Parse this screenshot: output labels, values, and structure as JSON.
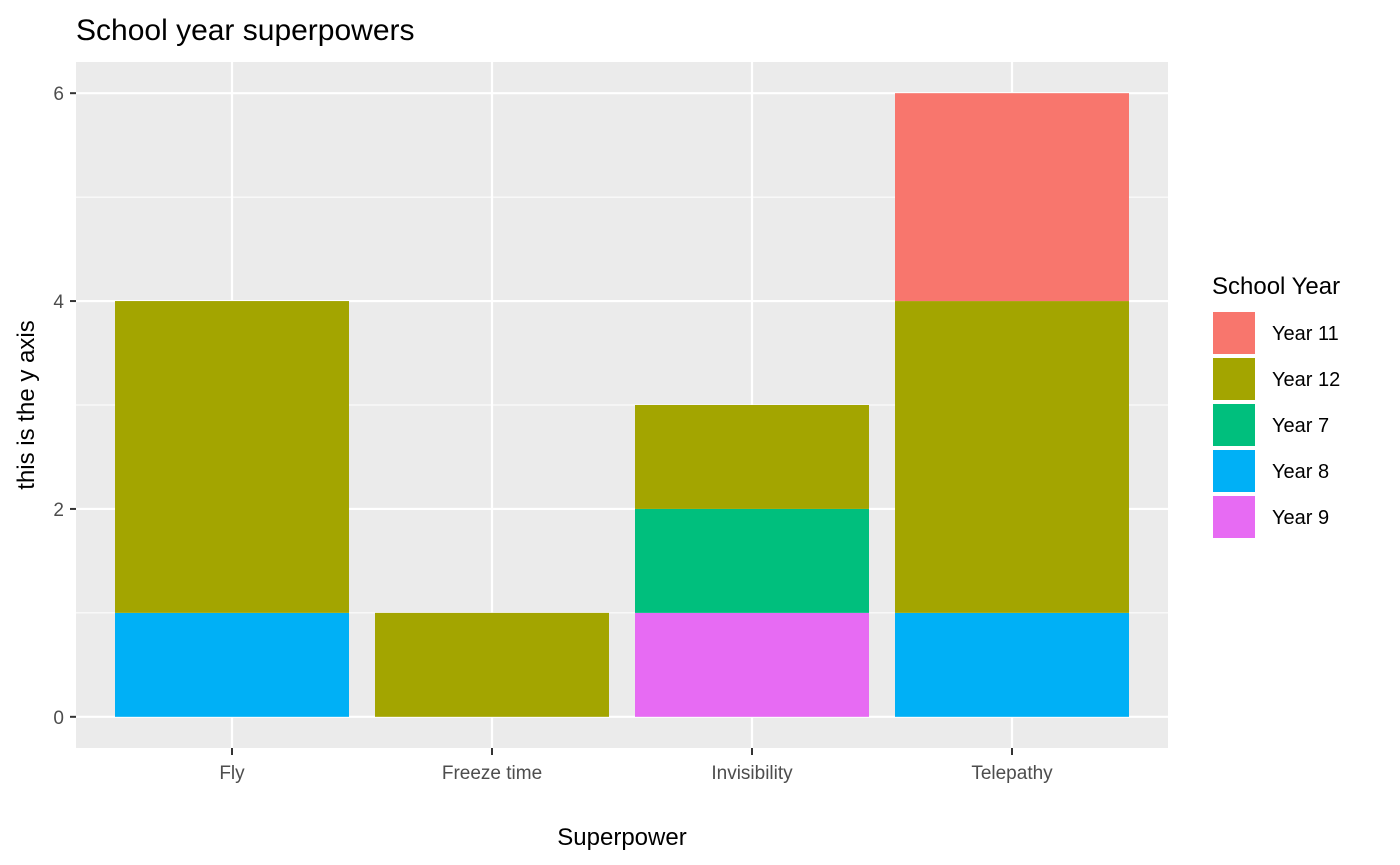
{
  "chart_data": {
    "type": "bar",
    "stacked": true,
    "title": "School year superpowers",
    "xlabel": "Superpower",
    "ylabel": "this is the y axis",
    "categories": [
      "Fly",
      "Freeze time",
      "Invisibility",
      "Telepathy"
    ],
    "ylim": [
      -0.3,
      6.3
    ],
    "yticks": [
      0,
      2,
      4,
      6
    ],
    "grid": true,
    "legend": {
      "title": "School Year",
      "position": "right"
    },
    "series": [
      {
        "name": "Year 11",
        "color": "#F8766D",
        "values": [
          0,
          0,
          0,
          2
        ]
      },
      {
        "name": "Year 12",
        "color": "#A3A500",
        "values": [
          3,
          1,
          1,
          3
        ]
      },
      {
        "name": "Year 7",
        "color": "#00BF7D",
        "values": [
          0,
          0,
          1,
          0
        ]
      },
      {
        "name": "Year 8",
        "color": "#00B0F6",
        "values": [
          1,
          0,
          0,
          1
        ]
      },
      {
        "name": "Year 9",
        "color": "#E76BF3",
        "values": [
          0,
          0,
          1,
          0
        ]
      }
    ]
  }
}
